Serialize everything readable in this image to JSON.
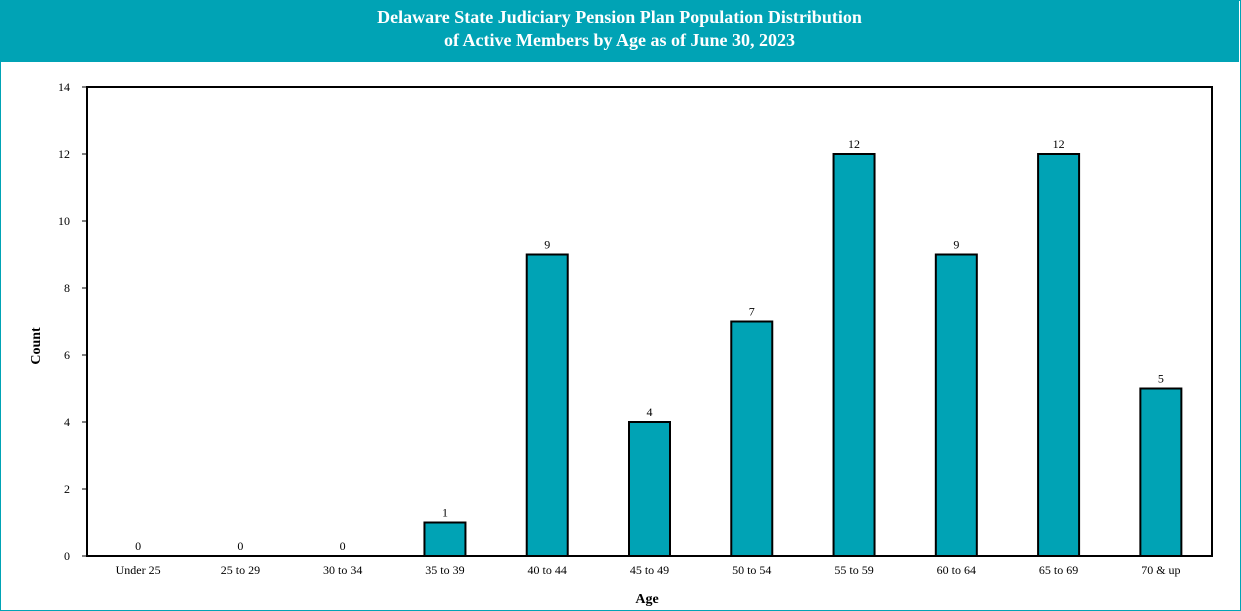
{
  "chart_data": {
    "type": "bar",
    "title_line1": "Delaware State Judiciary Pension Plan Population Distribution",
    "title_line2": "of Active Members by Age as of June 30, 2023",
    "xlabel": "Age",
    "ylabel": "Count",
    "categories": [
      "Under 25",
      "25 to 29",
      "30 to 34",
      "35 to 39",
      "40 to 44",
      "45 to 49",
      "50 to 54",
      "55 to 59",
      "60 to 64",
      "65 to 69",
      "70 & up"
    ],
    "values": [
      0,
      0,
      0,
      1,
      9,
      4,
      7,
      12,
      9,
      12,
      5
    ],
    "ylim": [
      0,
      14
    ],
    "yticks": [
      0,
      2,
      4,
      6,
      8,
      10,
      12,
      14
    ],
    "grid": false,
    "legend": "none",
    "bar_color": "#00a3b5",
    "data_labels": true
  }
}
